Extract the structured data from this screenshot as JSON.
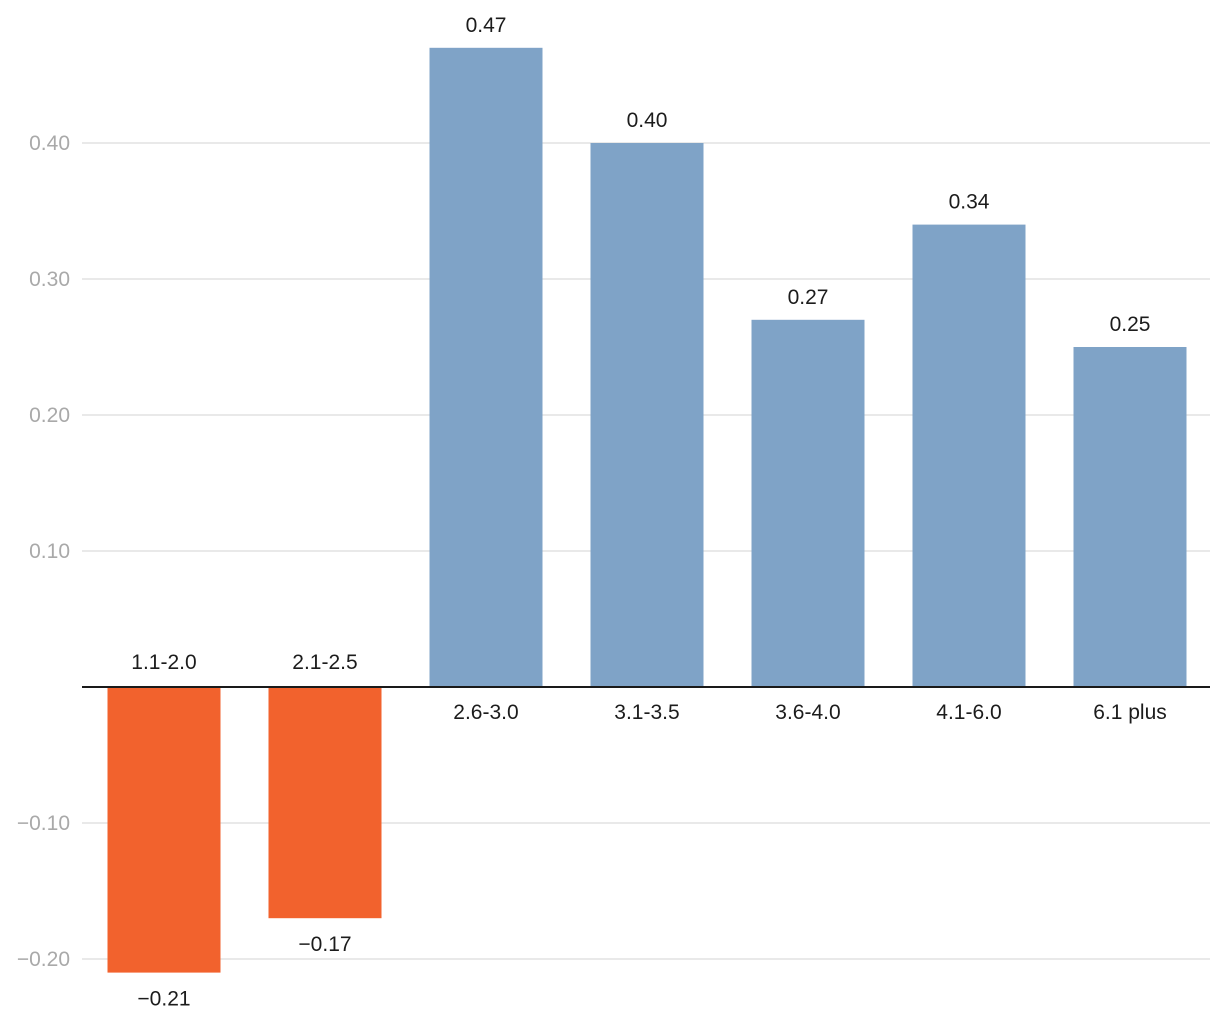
{
  "chart_data": {
    "type": "bar",
    "categories": [
      "1.1-2.0",
      "2.1-2.5",
      "2.6-3.0",
      "3.1-3.5",
      "3.6-4.0",
      "4.1-6.0",
      "6.1 plus"
    ],
    "values": [
      -0.21,
      -0.17,
      0.47,
      0.4,
      0.27,
      0.34,
      0.25
    ],
    "value_labels": [
      "−0.21",
      "−0.17",
      "0.47",
      "0.40",
      "0.27",
      "0.34",
      "0.25"
    ],
    "y_ticks": [
      0.4,
      0.3,
      0.2,
      0.1,
      -0.1,
      -0.2
    ],
    "y_tick_labels": [
      "0.40",
      "0.30",
      "0.20",
      "0.10",
      "−0.10",
      "−0.20"
    ],
    "ylim": [
      -0.24,
      0.5
    ],
    "title": "",
    "xlabel": "",
    "ylabel": "",
    "grid": true,
    "colors": {
      "positive": "#7fa3c7",
      "negative": "#f2622d",
      "zero_line": "#1a1a1a",
      "grid": "#e2e2e2",
      "tick_text": "#a9a9a9",
      "label_text": "#1c1c1c"
    }
  }
}
